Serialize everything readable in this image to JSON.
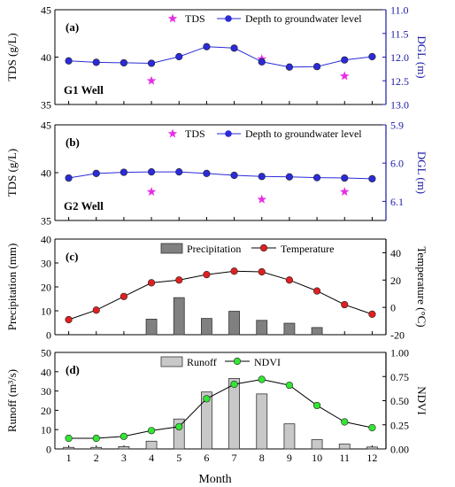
{
  "figure": {
    "x_axis_label": "Month"
  },
  "colors": {
    "axis": "#000000",
    "dgl_axis": "#1a1aa6",
    "tds_marker": "#e62ee6",
    "dgl_line": "#2b2bd9",
    "temperature_marker": "#e02020",
    "precip_bar": "#808080",
    "runoff_bar": "#c8c8c8",
    "ndvi_marker": "#33e633"
  },
  "chart_data": [
    {
      "panel": "(a)",
      "well_label": "G1 Well",
      "type": "line",
      "x": [
        1,
        2,
        3,
        4,
        5,
        6,
        7,
        8,
        9,
        10,
        11,
        12
      ],
      "xticks": [
        "1",
        "2",
        "3",
        "4",
        "5",
        "6",
        "7",
        "8",
        "9",
        "10",
        "11",
        "12"
      ],
      "left_axis": {
        "label": "TDS (g/L)",
        "range": [
          35,
          45
        ],
        "ticks": [
          "35",
          "40",
          "45"
        ]
      },
      "right_axis": {
        "label": "DGL (m)",
        "range": [
          11.0,
          13.0
        ],
        "inverted": true,
        "ticks": [
          "11.0",
          "11.5",
          "12.0",
          "12.5",
          "13.0"
        ]
      },
      "series": [
        {
          "name": "TDS",
          "type": "scatter",
          "marker": "star",
          "axis": "left",
          "x": [
            4,
            8,
            11
          ],
          "values": [
            37.5,
            39.8,
            38.0
          ]
        },
        {
          "name": "Depth to groundwater level",
          "type": "line",
          "marker": "circle",
          "axis": "right",
          "x": [
            1,
            2,
            3,
            4,
            5,
            6,
            7,
            8,
            9,
            10,
            11,
            12
          ],
          "values": [
            12.08,
            12.11,
            12.12,
            12.13,
            11.99,
            11.78,
            11.81,
            12.1,
            12.21,
            12.2,
            12.06,
            11.99
          ]
        }
      ],
      "legend_placement": "top"
    },
    {
      "panel": "(b)",
      "well_label": "G2 Well",
      "type": "line",
      "x": [
        1,
        2,
        3,
        4,
        5,
        6,
        7,
        8,
        9,
        10,
        11,
        12
      ],
      "xticks": [
        "1",
        "2",
        "3",
        "4",
        "5",
        "6",
        "7",
        "8",
        "9",
        "10",
        "11",
        "12"
      ],
      "left_axis": {
        "label": "TDS (g/L)",
        "range": [
          35,
          45
        ],
        "ticks": [
          "35",
          "40",
          "45"
        ]
      },
      "right_axis": {
        "label": "DGL (m)",
        "range": [
          5.9,
          6.15
        ],
        "inverted": true,
        "ticks": [
          "5.9",
          "6.0",
          "6.1"
        ]
      },
      "series": [
        {
          "name": "TDS",
          "type": "scatter",
          "marker": "star",
          "axis": "left",
          "x": [
            4,
            8,
            11
          ],
          "values": [
            38.0,
            37.2,
            38.0
          ]
        },
        {
          "name": "Depth to groundwater level",
          "type": "line",
          "marker": "circle",
          "axis": "right",
          "x": [
            1,
            2,
            3,
            4,
            5,
            6,
            7,
            8,
            9,
            10,
            11,
            12
          ],
          "values": [
            6.039,
            6.027,
            6.024,
            6.023,
            6.023,
            6.027,
            6.032,
            6.035,
            6.036,
            6.038,
            6.039,
            6.041
          ]
        }
      ],
      "legend_placement": "top"
    },
    {
      "panel": "(c)",
      "type": "bar",
      "x": [
        1,
        2,
        3,
        4,
        5,
        6,
        7,
        8,
        9,
        10,
        11,
        12
      ],
      "xticks": [
        "1",
        "2",
        "3",
        "4",
        "5",
        "6",
        "7",
        "8",
        "9",
        "10",
        "11",
        "12"
      ],
      "left_axis": {
        "label": "Precipitation (mm)",
        "range": [
          0,
          40
        ],
        "ticks": [
          "0",
          "10",
          "20",
          "30",
          "40"
        ]
      },
      "right_axis": {
        "label": "Temperature (°C)",
        "range": [
          -20,
          50
        ],
        "ticks": [
          "-20",
          "0",
          "20",
          "40"
        ]
      },
      "series": [
        {
          "name": "Precipitation",
          "type": "bar",
          "axis": "left",
          "x": [
            1,
            2,
            3,
            4,
            5,
            6,
            7,
            8,
            9,
            10,
            11,
            12
          ],
          "values": [
            0,
            0,
            0,
            6.5,
            15.5,
            6.8,
            9.8,
            6.0,
            4.8,
            3.0,
            0,
            0
          ]
        },
        {
          "name": "Temperature",
          "type": "line",
          "marker": "circle",
          "axis": "right",
          "x": [
            1,
            2,
            3,
            4,
            5,
            6,
            7,
            8,
            9,
            10,
            11,
            12
          ],
          "values": [
            -9,
            -2,
            8,
            18,
            20,
            24,
            26.5,
            26,
            20,
            12,
            2,
            -5
          ]
        }
      ],
      "legend_placement": "top"
    },
    {
      "panel": "(d)",
      "type": "bar",
      "x": [
        1,
        2,
        3,
        4,
        5,
        6,
        7,
        8,
        9,
        10,
        11,
        12
      ],
      "xticks": [
        "1",
        "2",
        "3",
        "4",
        "5",
        "6",
        "7",
        "8",
        "9",
        "10",
        "11",
        "12"
      ],
      "left_axis": {
        "label": "Runoff (m³/s)",
        "range": [
          0,
          50
        ],
        "ticks": [
          "0",
          "10",
          "20",
          "30",
          "40",
          "50"
        ]
      },
      "right_axis": {
        "label": "NDVI",
        "range": [
          0,
          1.0
        ],
        "ticks": [
          "0.00",
          "0.25",
          "0.50",
          "0.75",
          "1.00"
        ]
      },
      "series": [
        {
          "name": "Runoff",
          "type": "bar",
          "axis": "left",
          "x": [
            1,
            2,
            3,
            4,
            5,
            6,
            7,
            8,
            9,
            10,
            11,
            12
          ],
          "values": [
            0.8,
            0.8,
            1.2,
            4.0,
            15.5,
            29.5,
            36.5,
            28.5,
            13.0,
            4.8,
            2.5,
            1.0
          ]
        },
        {
          "name": "NDVI",
          "type": "line",
          "marker": "circle",
          "axis": "right",
          "x": [
            1,
            2,
            3,
            4,
            5,
            6,
            7,
            8,
            9,
            10,
            11,
            12
          ],
          "values": [
            0.11,
            0.11,
            0.13,
            0.19,
            0.23,
            0.52,
            0.67,
            0.72,
            0.66,
            0.45,
            0.28,
            0.22
          ]
        }
      ],
      "legend_placement": "top"
    }
  ]
}
